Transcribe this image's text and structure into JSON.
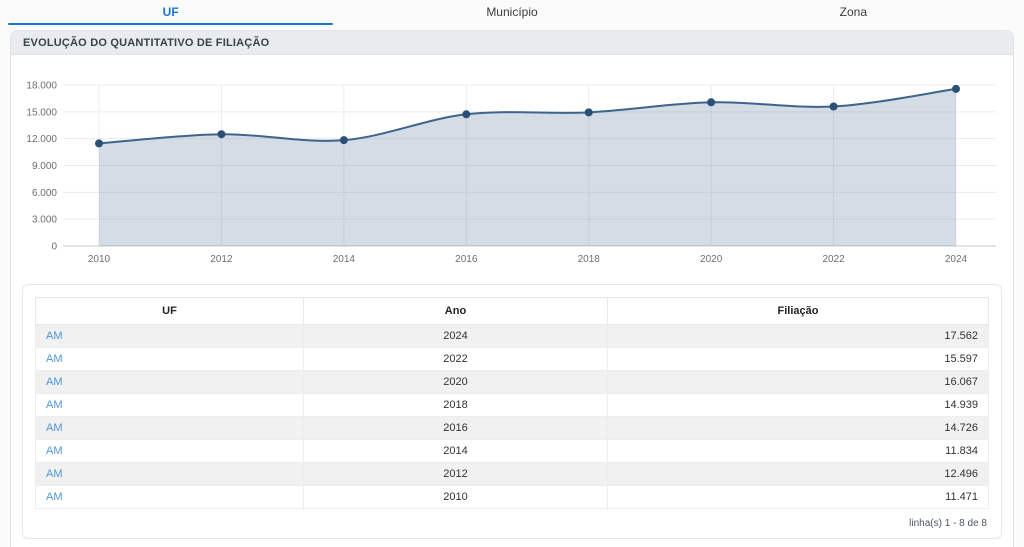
{
  "tabs": [
    {
      "label": "UF",
      "active": true
    },
    {
      "label": "Município",
      "active": false
    },
    {
      "label": "Zona",
      "active": false
    }
  ],
  "panel": {
    "title": "EVOLUÇÃO DO QUANTITATIVO DE FILIAÇÃO"
  },
  "chart_data": {
    "type": "area",
    "title": "EVOLUÇÃO DO QUANTITATIVO DE FILIAÇÃO",
    "x": [
      2010,
      2012,
      2014,
      2016,
      2018,
      2020,
      2022,
      2024
    ],
    "x_labels": [
      "2010",
      "2012",
      "2014",
      "2016",
      "2018",
      "2020",
      "2022",
      "2024"
    ],
    "values": [
      11471,
      12496,
      11834,
      14726,
      14939,
      16067,
      15597,
      17562
    ],
    "xlabel": "",
    "ylabel": "",
    "ylim": [
      0,
      18000
    ],
    "yticks": [
      0,
      3000,
      6000,
      9000,
      12000,
      15000,
      18000
    ],
    "ytick_labels": [
      "0",
      "3.000",
      "6.000",
      "9.000",
      "12.000",
      "15.000",
      "18.000"
    ],
    "grid": true,
    "legend": false,
    "line_color": "#3e648e",
    "point_color": "#2a5075",
    "fill_color": "rgba(100,128,160,0.28)",
    "grid_color": "#ececec",
    "axis_color": "#c4c9ce",
    "tick_text_color": "#6e6e6e"
  },
  "table": {
    "columns": [
      "UF",
      "Ano",
      "Filiação"
    ],
    "rows": [
      {
        "uf": "AM",
        "ano": "2024",
        "filiacao": "17.562"
      },
      {
        "uf": "AM",
        "ano": "2022",
        "filiacao": "15.597"
      },
      {
        "uf": "AM",
        "ano": "2020",
        "filiacao": "16.067"
      },
      {
        "uf": "AM",
        "ano": "2018",
        "filiacao": "14.939"
      },
      {
        "uf": "AM",
        "ano": "2016",
        "filiacao": "14.726"
      },
      {
        "uf": "AM",
        "ano": "2014",
        "filiacao": "11.834"
      },
      {
        "uf": "AM",
        "ano": "2012",
        "filiacao": "12.496"
      },
      {
        "uf": "AM",
        "ano": "2010",
        "filiacao": "11.471"
      }
    ],
    "footer": "linha(s) 1 - 8 de 8"
  }
}
